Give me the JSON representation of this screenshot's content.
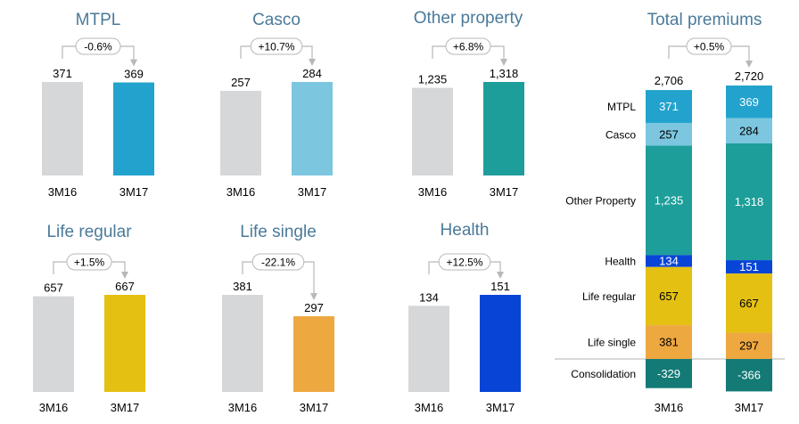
{
  "chart_data": [
    {
      "type": "bar",
      "title": "MTPL",
      "categories": [
        "3M16",
        "3M17"
      ],
      "values": [
        371,
        369
      ],
      "value_labels": [
        "371",
        "369"
      ],
      "change_label": "-0.6%",
      "colors": [
        "#d6d7d9",
        "#22a3cd"
      ]
    },
    {
      "type": "bar",
      "title": "Casco",
      "categories": [
        "3M16",
        "3M17"
      ],
      "values": [
        257,
        284
      ],
      "value_labels": [
        "257",
        "284"
      ],
      "change_label": "+10.7%",
      "colors": [
        "#d6d7d9",
        "#7cc6df"
      ]
    },
    {
      "type": "bar",
      "title": "Other property",
      "categories": [
        "3M16",
        "3M17"
      ],
      "values": [
        1235,
        1318
      ],
      "value_labels": [
        "1,235",
        "1,318"
      ],
      "change_label": "+6.8%",
      "colors": [
        "#d6d7d9",
        "#1e9e9a"
      ]
    },
    {
      "type": "bar",
      "title": "Life regular",
      "categories": [
        "3M16",
        "3M17"
      ],
      "values": [
        657,
        667
      ],
      "value_labels": [
        "657",
        "667"
      ],
      "change_label": "+1.5%",
      "colors": [
        "#d6d7d9",
        "#e4c013"
      ]
    },
    {
      "type": "bar",
      "title": "Life single",
      "categories": [
        "3M16",
        "3M17"
      ],
      "values": [
        381,
        297
      ],
      "value_labels": [
        "381",
        "297"
      ],
      "change_label": "-22.1%",
      "colors": [
        "#d6d7d9",
        "#eea840"
      ]
    },
    {
      "type": "bar",
      "title": "Health",
      "categories": [
        "3M16",
        "3M17"
      ],
      "values": [
        134,
        151
      ],
      "value_labels": [
        "134",
        "151"
      ],
      "change_label": "+12.5%",
      "colors": [
        "#d6d7d9",
        "#0845d6"
      ]
    },
    {
      "type": "stacked-bar",
      "title": "Total premiums",
      "categories": [
        "3M16",
        "3M17"
      ],
      "totals": [
        2706,
        2720
      ],
      "total_labels": [
        "2,706",
        "2,720"
      ],
      "change_label": "+0.5%",
      "series": [
        {
          "name": "MTPL",
          "values": [
            371,
            369
          ],
          "value_labels": [
            "371",
            "369"
          ],
          "color": "#22a3cd",
          "text_color": "#ffffff"
        },
        {
          "name": "Casco",
          "values": [
            257,
            284
          ],
          "value_labels": [
            "257",
            "284"
          ],
          "color": "#7cc6df",
          "text_color": "#000000"
        },
        {
          "name": "Other Property",
          "values": [
            1235,
            1318
          ],
          "value_labels": [
            "1,235",
            "1,318"
          ],
          "color": "#1e9e9a",
          "text_color": "#ffffff"
        },
        {
          "name": "Health",
          "values": [
            134,
            151
          ],
          "value_labels": [
            "134",
            "151"
          ],
          "color": "#0845d6",
          "text_color": "#ffffff"
        },
        {
          "name": "Life regular",
          "values": [
            657,
            667
          ],
          "value_labels": [
            "657",
            "667"
          ],
          "color": "#e4c013",
          "text_color": "#000000"
        },
        {
          "name": "Life single",
          "values": [
            381,
            297
          ],
          "value_labels": [
            "381",
            "297"
          ],
          "color": "#eea840",
          "text_color": "#000000"
        },
        {
          "name": "Consolidation",
          "values": [
            -329,
            -366
          ],
          "value_labels": [
            "-329",
            "-366"
          ],
          "color": "#137a76",
          "text_color": "#ffffff"
        }
      ]
    }
  ]
}
